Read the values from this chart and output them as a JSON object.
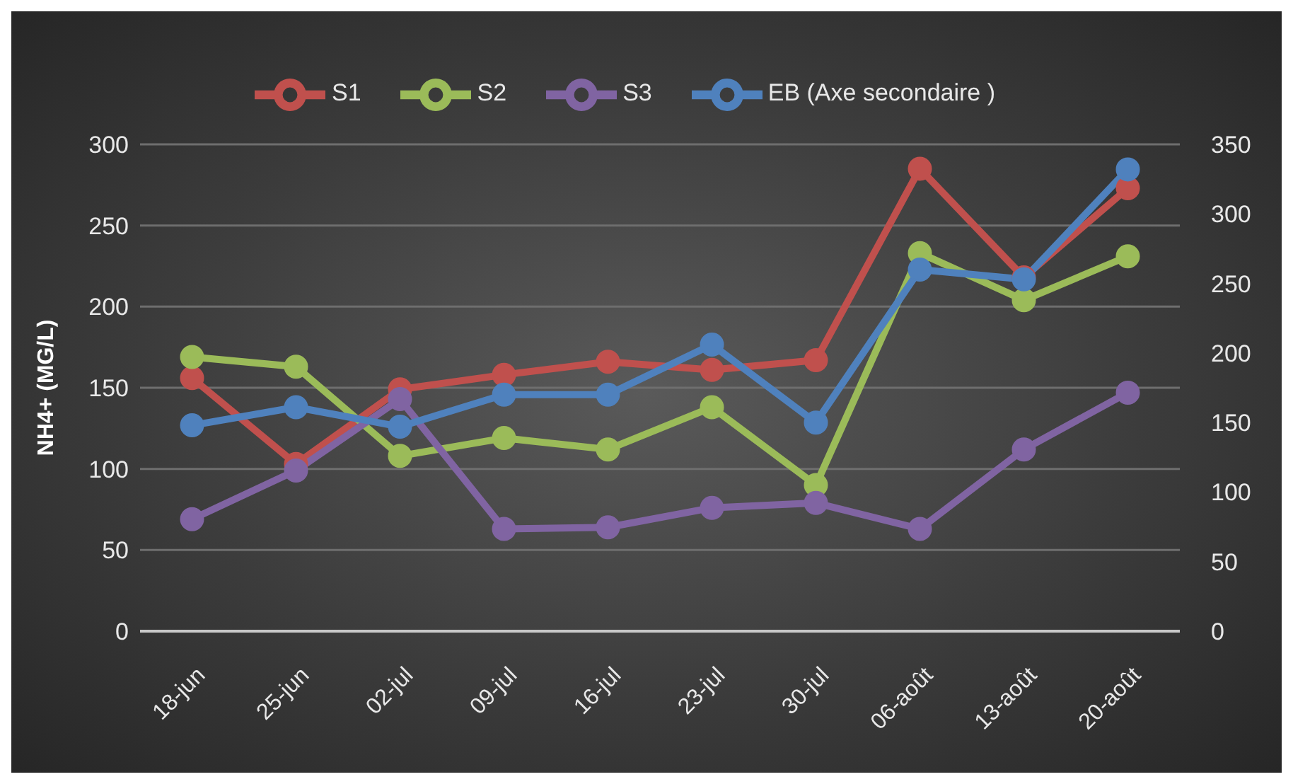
{
  "chart_data": {
    "type": "line",
    "categories": [
      "18-jun",
      "25-jun",
      "02-jul",
      "09-jul",
      "16-jul",
      "23-jul",
      "30-jul",
      "06-août",
      "13-août",
      "20-août"
    ],
    "series": [
      {
        "name": "S1",
        "color": "#c0504d",
        "values": [
          156,
          103,
          149,
          158,
          166,
          161,
          167,
          285,
          218,
          273
        ]
      },
      {
        "name": "S2",
        "color": "#9bbb59",
        "values": [
          169,
          163,
          108,
          119,
          112,
          138,
          90,
          233,
          204,
          231
        ]
      },
      {
        "name": "S3",
        "color": "#8064a2",
        "values": [
          69,
          99,
          143,
          63,
          64,
          76,
          79,
          63,
          112,
          147
        ]
      },
      {
        "name": "EB (Axe secondaire )",
        "color": "#4f81bd",
        "axis": "y2",
        "values": [
          148,
          161,
          147,
          170,
          170,
          206,
          150,
          260,
          253,
          332
        ]
      }
    ],
    "ylabel": "NH4+ (MG/L)",
    "ylim": [
      0,
      300
    ],
    "yticks": [
      0,
      50,
      100,
      150,
      200,
      250,
      300
    ],
    "y2lim": [
      0,
      350
    ],
    "y2ticks": [
      0,
      50,
      100,
      150,
      200,
      250,
      300,
      350
    ],
    "grid": "y",
    "legend": "top",
    "marker": "circle",
    "line_style": "solid"
  }
}
